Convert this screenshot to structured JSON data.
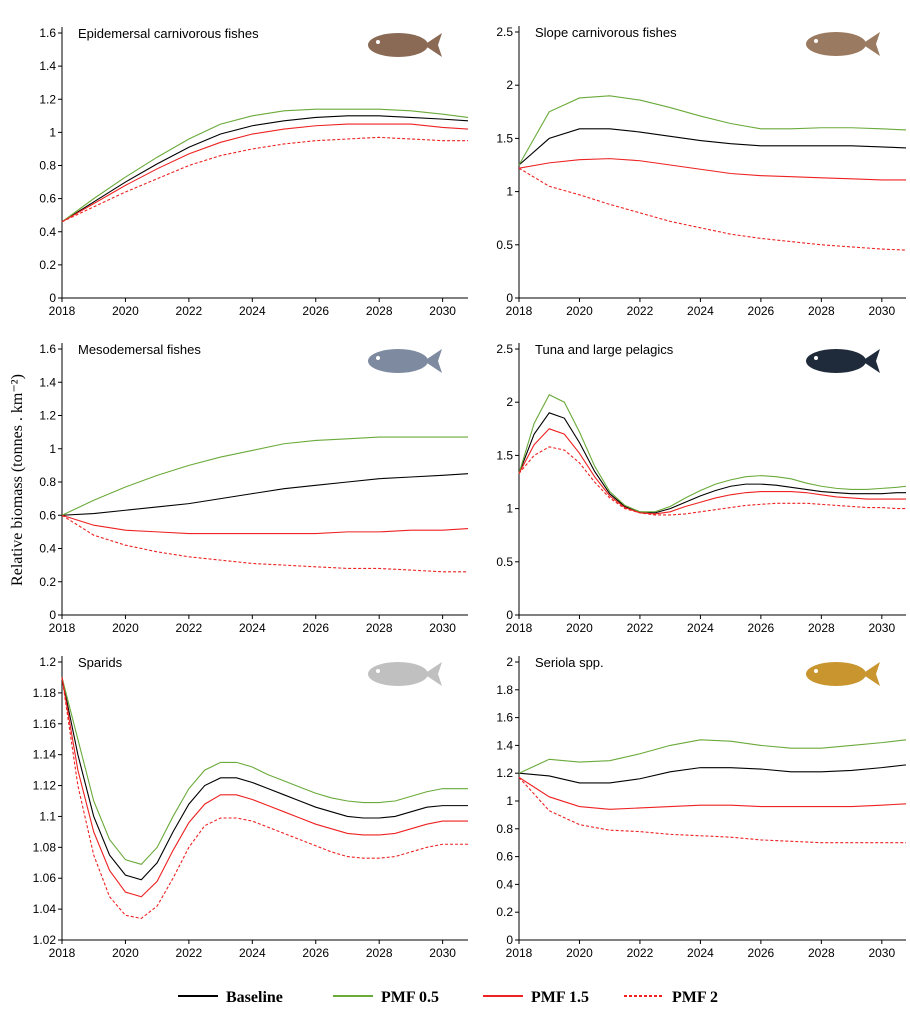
{
  "chart_data": [
    {
      "type": "line",
      "title": "Epidemersal carnivorous fishes",
      "x": [
        2018,
        2019,
        2020,
        2021,
        2022,
        2023,
        2024,
        2025,
        2026,
        2027,
        2028,
        2029,
        2030,
        2030.8
      ],
      "xlim": [
        2018,
        2030.8
      ],
      "xticks": [
        2018,
        2020,
        2022,
        2024,
        2026,
        2028,
        2030
      ],
      "ylim": [
        0,
        1.6
      ],
      "yticks": [
        0,
        0.2,
        0.4,
        0.6,
        0.8,
        1,
        1.2,
        1.4,
        1.6
      ],
      "series": [
        {
          "name": "Baseline",
          "color": "#000000",
          "linestyle": "solid",
          "values": [
            0.46,
            0.58,
            0.7,
            0.81,
            0.91,
            0.99,
            1.04,
            1.07,
            1.09,
            1.1,
            1.1,
            1.09,
            1.08,
            1.07
          ]
        },
        {
          "name": "PMF 0.5",
          "color": "#6aaa3a",
          "linestyle": "solid",
          "values": [
            0.46,
            0.6,
            0.73,
            0.85,
            0.96,
            1.05,
            1.1,
            1.13,
            1.14,
            1.14,
            1.14,
            1.13,
            1.11,
            1.09
          ]
        },
        {
          "name": "PMF 1.5",
          "color": "#ee2222",
          "linestyle": "solid",
          "values": [
            0.46,
            0.57,
            0.68,
            0.78,
            0.87,
            0.94,
            0.99,
            1.02,
            1.04,
            1.05,
            1.05,
            1.05,
            1.03,
            1.02
          ]
        },
        {
          "name": "PMF 2",
          "color": "#ee2222",
          "linestyle": "dashed",
          "values": [
            0.46,
            0.55,
            0.64,
            0.72,
            0.8,
            0.86,
            0.9,
            0.93,
            0.95,
            0.96,
            0.97,
            0.96,
            0.95,
            0.95
          ]
        }
      ]
    },
    {
      "type": "line",
      "title": "Slope carnivorous fishes",
      "x": [
        2018,
        2019,
        2020,
        2021,
        2022,
        2023,
        2024,
        2025,
        2026,
        2027,
        2028,
        2029,
        2030,
        2030.8
      ],
      "xlim": [
        2018,
        2030.8
      ],
      "xticks": [
        2018,
        2020,
        2022,
        2024,
        2026,
        2028,
        2030
      ],
      "ylim": [
        0,
        2.5
      ],
      "yticks": [
        0,
        0.5,
        1,
        1.5,
        2,
        2.5
      ],
      "series": [
        {
          "name": "Baseline",
          "color": "#000000",
          "linestyle": "solid",
          "values": [
            1.25,
            1.5,
            1.59,
            1.59,
            1.56,
            1.52,
            1.48,
            1.45,
            1.43,
            1.43,
            1.43,
            1.43,
            1.42,
            1.41
          ]
        },
        {
          "name": "PMF 0.5",
          "color": "#6aaa3a",
          "linestyle": "solid",
          "values": [
            1.25,
            1.75,
            1.88,
            1.9,
            1.86,
            1.79,
            1.71,
            1.64,
            1.59,
            1.59,
            1.6,
            1.6,
            1.59,
            1.58
          ]
        },
        {
          "name": "PMF 1.5",
          "color": "#ee2222",
          "linestyle": "solid",
          "values": [
            1.22,
            1.27,
            1.3,
            1.31,
            1.29,
            1.25,
            1.21,
            1.17,
            1.15,
            1.14,
            1.13,
            1.12,
            1.11,
            1.11
          ]
        },
        {
          "name": "PMF 2",
          "color": "#ee2222",
          "linestyle": "dashed",
          "values": [
            1.22,
            1.05,
            0.97,
            0.88,
            0.8,
            0.72,
            0.66,
            0.6,
            0.56,
            0.53,
            0.5,
            0.48,
            0.46,
            0.45
          ]
        }
      ]
    },
    {
      "type": "line",
      "title": "Mesodemersal fishes",
      "ylabel": "Relative biomass (tonnes . km⁻²)",
      "x": [
        2018,
        2019,
        2020,
        2021,
        2022,
        2023,
        2024,
        2025,
        2026,
        2027,
        2028,
        2029,
        2030,
        2030.8
      ],
      "xlim": [
        2018,
        2030.8
      ],
      "xticks": [
        2018,
        2020,
        2022,
        2024,
        2026,
        2028,
        2030
      ],
      "ylim": [
        0,
        1.6
      ],
      "yticks": [
        0,
        0.2,
        0.4,
        0.6,
        0.8,
        1,
        1.2,
        1.4,
        1.6
      ],
      "series": [
        {
          "name": "Baseline",
          "color": "#000000",
          "linestyle": "solid",
          "values": [
            0.6,
            0.61,
            0.63,
            0.65,
            0.67,
            0.7,
            0.73,
            0.76,
            0.78,
            0.8,
            0.82,
            0.83,
            0.84,
            0.85
          ]
        },
        {
          "name": "PMF 0.5",
          "color": "#6aaa3a",
          "linestyle": "solid",
          "values": [
            0.6,
            0.69,
            0.77,
            0.84,
            0.9,
            0.95,
            0.99,
            1.03,
            1.05,
            1.06,
            1.07,
            1.07,
            1.07,
            1.07
          ]
        },
        {
          "name": "PMF 1.5",
          "color": "#ee2222",
          "linestyle": "solid",
          "values": [
            0.6,
            0.54,
            0.51,
            0.5,
            0.49,
            0.49,
            0.49,
            0.49,
            0.49,
            0.5,
            0.5,
            0.51,
            0.51,
            0.52
          ]
        },
        {
          "name": "PMF 2",
          "color": "#ee2222",
          "linestyle": "dashed",
          "values": [
            0.6,
            0.48,
            0.42,
            0.38,
            0.35,
            0.33,
            0.31,
            0.3,
            0.29,
            0.28,
            0.28,
            0.27,
            0.26,
            0.26
          ]
        }
      ]
    },
    {
      "type": "line",
      "title": "Tuna and large pelagics",
      "x": [
        2018,
        2018.5,
        2019,
        2019.5,
        2020,
        2020.5,
        2021,
        2021.5,
        2022,
        2022.5,
        2023,
        2023.5,
        2024,
        2024.5,
        2025,
        2025.5,
        2026,
        2026.5,
        2027,
        2027.5,
        2028,
        2028.5,
        2029,
        2029.5,
        2030,
        2030.5,
        2030.8
      ],
      "xlim": [
        2018,
        2030.8
      ],
      "xticks": [
        2018,
        2020,
        2022,
        2024,
        2026,
        2028,
        2030
      ],
      "ylim": [
        0,
        2.5
      ],
      "yticks": [
        0,
        0.5,
        1,
        1.5,
        2,
        2.5
      ],
      "series": [
        {
          "name": "Baseline",
          "color": "#000000",
          "linestyle": "solid",
          "values": [
            1.33,
            1.7,
            1.9,
            1.85,
            1.62,
            1.35,
            1.14,
            1.02,
            0.97,
            0.96,
            1.0,
            1.06,
            1.12,
            1.17,
            1.21,
            1.23,
            1.23,
            1.22,
            1.2,
            1.18,
            1.16,
            1.15,
            1.14,
            1.14,
            1.14,
            1.15,
            1.15
          ]
        },
        {
          "name": "PMF 0.5",
          "color": "#6aaa3a",
          "linestyle": "solid",
          "values": [
            1.33,
            1.8,
            2.07,
            2.0,
            1.72,
            1.4,
            1.16,
            1.03,
            0.97,
            0.97,
            1.02,
            1.1,
            1.17,
            1.23,
            1.27,
            1.3,
            1.31,
            1.3,
            1.28,
            1.24,
            1.21,
            1.19,
            1.18,
            1.18,
            1.19,
            1.2,
            1.21
          ]
        },
        {
          "name": "PMF 1.5",
          "color": "#ee2222",
          "linestyle": "solid",
          "values": [
            1.33,
            1.6,
            1.75,
            1.7,
            1.52,
            1.3,
            1.12,
            1.01,
            0.96,
            0.95,
            0.97,
            1.02,
            1.06,
            1.1,
            1.13,
            1.15,
            1.16,
            1.16,
            1.16,
            1.15,
            1.13,
            1.11,
            1.1,
            1.09,
            1.09,
            1.09,
            1.09
          ]
        },
        {
          "name": "PMF 2",
          "color": "#ee2222",
          "linestyle": "dashed",
          "values": [
            1.33,
            1.5,
            1.58,
            1.55,
            1.43,
            1.25,
            1.1,
            1.0,
            0.96,
            0.94,
            0.94,
            0.95,
            0.97,
            0.99,
            1.01,
            1.03,
            1.04,
            1.05,
            1.05,
            1.05,
            1.04,
            1.03,
            1.02,
            1.01,
            1.01,
            1.0,
            1.0
          ]
        }
      ]
    },
    {
      "type": "line",
      "title": "Sparids",
      "x": [
        2018,
        2018.5,
        2019,
        2019.5,
        2020,
        2020.5,
        2021,
        2021.5,
        2022,
        2022.5,
        2023,
        2023.5,
        2024,
        2024.5,
        2025,
        2025.5,
        2026,
        2026.5,
        2027,
        2027.5,
        2028,
        2028.5,
        2029,
        2029.5,
        2030,
        2030.5,
        2030.8
      ],
      "xlim": [
        2018,
        2030.8
      ],
      "xticks": [
        2018,
        2020,
        2022,
        2024,
        2026,
        2028,
        2030
      ],
      "ylim": [
        1.02,
        1.2
      ],
      "yticks": [
        1.02,
        1.04,
        1.06,
        1.08,
        1.1,
        1.12,
        1.14,
        1.16,
        1.18,
        1.2
      ],
      "series": [
        {
          "name": "Baseline",
          "color": "#000000",
          "linestyle": "solid",
          "values": [
            1.19,
            1.14,
            1.1,
            1.075,
            1.062,
            1.059,
            1.07,
            1.09,
            1.108,
            1.12,
            1.125,
            1.125,
            1.122,
            1.118,
            1.114,
            1.11,
            1.106,
            1.103,
            1.1,
            1.099,
            1.099,
            1.1,
            1.103,
            1.106,
            1.107,
            1.107,
            1.107
          ]
        },
        {
          "name": "PMF 0.5",
          "color": "#6aaa3a",
          "linestyle": "solid",
          "values": [
            1.19,
            1.15,
            1.11,
            1.085,
            1.072,
            1.069,
            1.08,
            1.1,
            1.118,
            1.13,
            1.135,
            1.135,
            1.132,
            1.127,
            1.123,
            1.119,
            1.115,
            1.112,
            1.11,
            1.109,
            1.109,
            1.11,
            1.113,
            1.116,
            1.118,
            1.118,
            1.118
          ]
        },
        {
          "name": "PMF 1.5",
          "color": "#ee2222",
          "linestyle": "solid",
          "values": [
            1.19,
            1.13,
            1.09,
            1.065,
            1.051,
            1.048,
            1.058,
            1.078,
            1.096,
            1.108,
            1.114,
            1.114,
            1.111,
            1.107,
            1.103,
            1.099,
            1.095,
            1.092,
            1.089,
            1.088,
            1.088,
            1.089,
            1.092,
            1.095,
            1.097,
            1.097,
            1.097
          ]
        },
        {
          "name": "PMF 2",
          "color": "#ee2222",
          "linestyle": "dashed",
          "values": [
            1.19,
            1.12,
            1.075,
            1.048,
            1.036,
            1.034,
            1.042,
            1.06,
            1.08,
            1.094,
            1.099,
            1.099,
            1.097,
            1.093,
            1.089,
            1.085,
            1.081,
            1.077,
            1.074,
            1.073,
            1.073,
            1.074,
            1.077,
            1.08,
            1.082,
            1.082,
            1.082
          ]
        }
      ]
    },
    {
      "type": "line",
      "title": "Seriola spp.",
      "x": [
        2018,
        2019,
        2020,
        2021,
        2022,
        2023,
        2024,
        2025,
        2026,
        2027,
        2028,
        2029,
        2030,
        2030.8
      ],
      "xlim": [
        2018,
        2030.8
      ],
      "xticks": [
        2018,
        2020,
        2022,
        2024,
        2026,
        2028,
        2030
      ],
      "ylim": [
        0,
        2
      ],
      "yticks": [
        0,
        0.2,
        0.4,
        0.6,
        0.8,
        1,
        1.2,
        1.4,
        1.6,
        1.8,
        2
      ],
      "series": [
        {
          "name": "Baseline",
          "color": "#000000",
          "linestyle": "solid",
          "values": [
            1.2,
            1.18,
            1.13,
            1.13,
            1.16,
            1.21,
            1.24,
            1.24,
            1.23,
            1.21,
            1.21,
            1.22,
            1.24,
            1.26
          ]
        },
        {
          "name": "PMF 0.5",
          "color": "#6aaa3a",
          "linestyle": "solid",
          "values": [
            1.2,
            1.3,
            1.28,
            1.29,
            1.34,
            1.4,
            1.44,
            1.43,
            1.4,
            1.38,
            1.38,
            1.4,
            1.42,
            1.44
          ]
        },
        {
          "name": "PMF 1.5",
          "color": "#ee2222",
          "linestyle": "solid",
          "values": [
            1.17,
            1.03,
            0.96,
            0.94,
            0.95,
            0.96,
            0.97,
            0.97,
            0.96,
            0.96,
            0.96,
            0.96,
            0.97,
            0.98
          ]
        },
        {
          "name": "PMF 2",
          "color": "#ee2222",
          "linestyle": "dashed",
          "values": [
            1.17,
            0.93,
            0.83,
            0.79,
            0.78,
            0.76,
            0.75,
            0.74,
            0.72,
            0.71,
            0.7,
            0.7,
            0.7,
            0.7
          ]
        }
      ]
    }
  ]
}
